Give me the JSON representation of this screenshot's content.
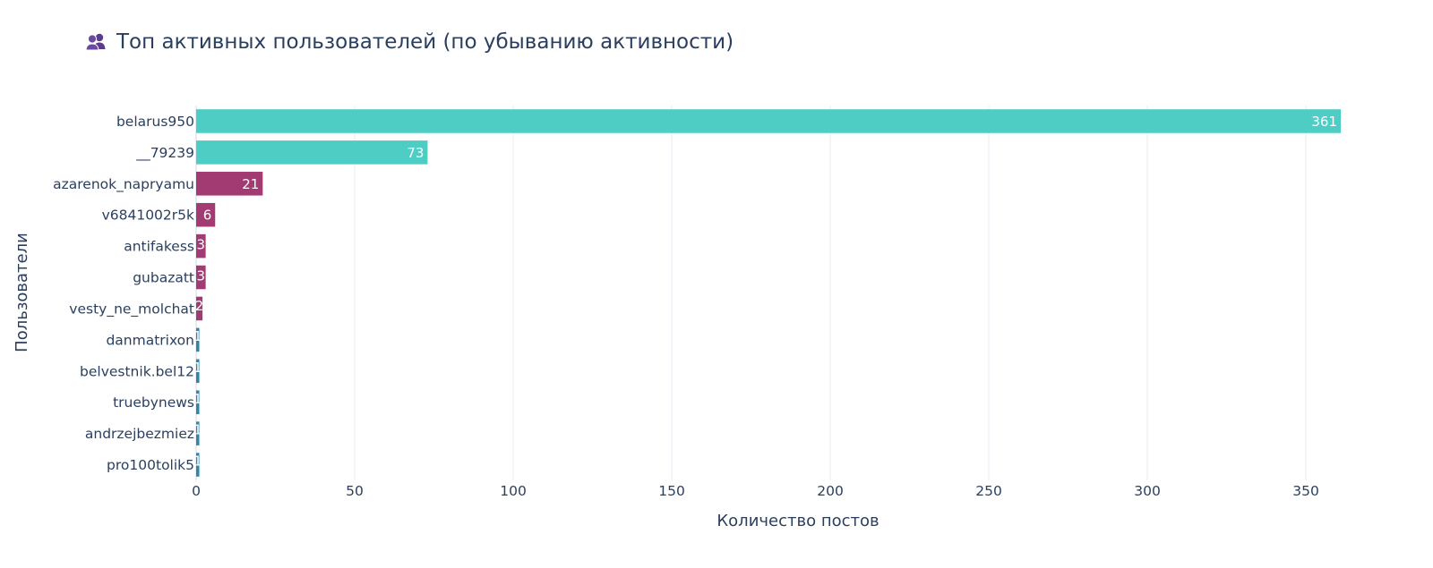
{
  "title_icon": "busts-in-silhouette-icon",
  "title_icon_color": "#5b3c88",
  "chart_data": {
    "type": "bar",
    "orientation": "horizontal",
    "title": "Топ активных пользователей (по убыванию активности)",
    "xlabel": "Количество постов",
    "ylabel": "Пользователи",
    "xlim": [
      0,
      361
    ],
    "xticks": [
      0,
      50,
      100,
      150,
      200,
      250,
      300,
      350
    ],
    "grid": true,
    "legend": "none",
    "categories": [
      "belarus950",
      "__79239",
      "azarenok_napryamu",
      "v6841002r5k",
      "antifakess",
      "gubazatt",
      "vesty_ne_molchat",
      "danmatrixon",
      "belvestnik.bel12",
      "truebynews",
      "andrzejbezmiez",
      "pro100tolik5"
    ],
    "values": [
      361,
      73,
      21,
      6,
      3,
      3,
      2,
      1,
      1,
      1,
      1,
      1
    ],
    "data_labels": [
      "361",
      "73",
      "21",
      "6",
      "3",
      "3",
      "2",
      "1",
      "1",
      "1",
      "1",
      "1"
    ],
    "colors": [
      "#4ecdc4",
      "#4ecdc4",
      "#a23b72",
      "#a23b72",
      "#a23b72",
      "#a23b72",
      "#a23b72",
      "#2e86ab",
      "#2e86ab",
      "#2e86ab",
      "#2e86ab",
      "#2e86ab"
    ]
  }
}
